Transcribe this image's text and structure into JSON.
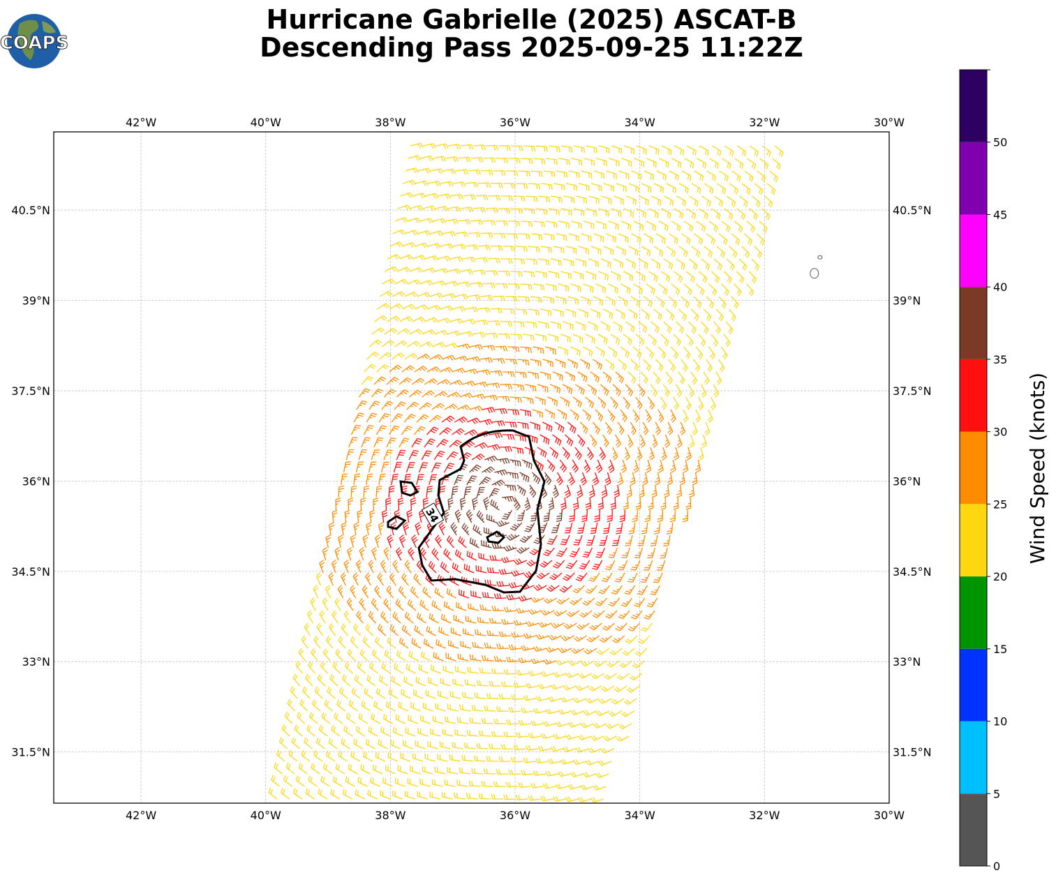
{
  "title": {
    "line1": "Hurricane Gabrielle (2025) ASCAT-B",
    "line2": "Descending Pass 2025-09-25 11:22Z"
  },
  "logo": {
    "text": "COAPS"
  },
  "chart_data": {
    "type": "wind-barb-map",
    "x_axis": {
      "range": [
        -43.4,
        -30.0
      ],
      "ticks": [
        -42,
        -40,
        -38,
        -36,
        -34,
        -32,
        -30
      ],
      "tick_labels": [
        "42°W",
        "40°W",
        "38°W",
        "36°W",
        "34°W",
        "32°W",
        "30°W"
      ]
    },
    "y_axis": {
      "range": [
        30.65,
        41.8
      ],
      "ticks": [
        31.5,
        33,
        34.5,
        36,
        37.5,
        39,
        40.5
      ],
      "tick_labels": [
        "31.5°N",
        "33°N",
        "34.5°N",
        "36°N",
        "37.5°N",
        "39°N",
        "40.5°N"
      ]
    },
    "grid": true,
    "contour": {
      "level": 34,
      "label": "34",
      "color": "#000000"
    },
    "colorbar": {
      "label": "Wind Speed (knots)",
      "bounds": [
        0,
        5,
        10,
        15,
        20,
        25,
        30,
        35,
        40,
        45,
        50,
        55
      ],
      "tick_labels": [
        "0",
        "5",
        "10",
        "15",
        "20",
        "25",
        "30",
        "35",
        "40",
        "45",
        "50"
      ],
      "colors": [
        "#555555",
        "#00bfff",
        "#0033ff",
        "#009400",
        "#ffd711",
        "#ff8c00",
        "#ff1010",
        "#7b3a26",
        "#ff00ff",
        "#8000b0",
        "#2e0062"
      ]
    },
    "storm_center": {
      "lon": -36.2,
      "lat": 35.6
    },
    "swath": {
      "bottom_west_lon": -39.9,
      "bottom_east_lon": -34.4,
      "bottom_lat": 30.65,
      "top_west_lon": -37.7,
      "top_east_lon": -31.6,
      "top_lat": 41.8
    },
    "wind_speed_zones": [
      {
        "range_km_from_center": [
          0,
          90
        ],
        "knots": 38
      },
      {
        "range_km_from_center": [
          90,
          180
        ],
        "knots": 32
      },
      {
        "range_km_from_center": [
          180,
          300
        ],
        "knots": 27
      },
      {
        "range_km_from_center": [
          300,
          2000
        ],
        "knots": 22
      }
    ],
    "island_outline": {
      "lon": -31.2,
      "lat": 39.45
    }
  }
}
